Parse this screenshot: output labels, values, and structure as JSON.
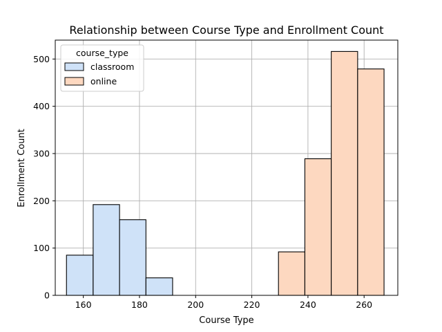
{
  "chart_data": {
    "type": "bar",
    "title": "Relationship between Course Type and Enrollment Count",
    "xlabel": "Course Type",
    "ylabel": "Enrollment Count",
    "xlim": [
      150,
      272
    ],
    "ylim": [
      0,
      540
    ],
    "xticks": [
      160,
      180,
      200,
      220,
      240,
      260
    ],
    "yticks": [
      0,
      100,
      200,
      300,
      400,
      500
    ],
    "grid": true,
    "legend": {
      "title": "course_type",
      "position": "top-left",
      "entries": [
        "classroom",
        "online"
      ]
    },
    "series": [
      {
        "name": "classroom",
        "color": "#cfe2f8",
        "bins": [
          {
            "x0": 154.0,
            "x1": 163.5,
            "value": 85
          },
          {
            "x0": 163.5,
            "x1": 172.9,
            "value": 192
          },
          {
            "x0": 172.9,
            "x1": 182.3,
            "value": 160
          },
          {
            "x0": 182.3,
            "x1": 191.8,
            "value": 37
          }
        ]
      },
      {
        "name": "online",
        "color": "#fdd8c0",
        "bins": [
          {
            "x0": 229.5,
            "x1": 238.9,
            "value": 92
          },
          {
            "x0": 238.9,
            "x1": 248.3,
            "value": 289
          },
          {
            "x0": 248.3,
            "x1": 257.7,
            "value": 516
          },
          {
            "x0": 257.7,
            "x1": 267.1,
            "value": 479
          }
        ]
      }
    ]
  }
}
